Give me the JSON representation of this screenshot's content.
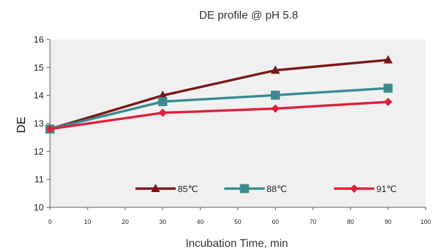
{
  "chart_data": {
    "type": "line",
    "title": "DE profile @ pH 5.8",
    "xlabel": "Incubation Time, min",
    "ylabel": "DE",
    "xlim": [
      0,
      100
    ],
    "ylim": [
      10,
      16
    ],
    "x_ticks": [
      0,
      10,
      20,
      30,
      40,
      50,
      60,
      70,
      80,
      90,
      100
    ],
    "y_ticks": [
      10,
      11,
      12,
      13,
      14,
      15,
      16
    ],
    "grid": false,
    "plot_background": "#f0f0f0",
    "legend": "bottom-inside",
    "x": [
      0,
      30,
      60,
      90
    ],
    "series": [
      {
        "name": "85℃",
        "values": [
          12.8,
          14.0,
          14.9,
          15.27
        ],
        "color": "#7b1616",
        "marker": "triangle"
      },
      {
        "name": "88℃",
        "values": [
          12.8,
          13.78,
          14.01,
          14.26
        ],
        "color": "#3a8a8f",
        "marker": "square"
      },
      {
        "name": "91℃",
        "values": [
          12.8,
          13.38,
          13.53,
          13.77
        ],
        "color": "#e0203a",
        "marker": "diamond"
      }
    ]
  }
}
